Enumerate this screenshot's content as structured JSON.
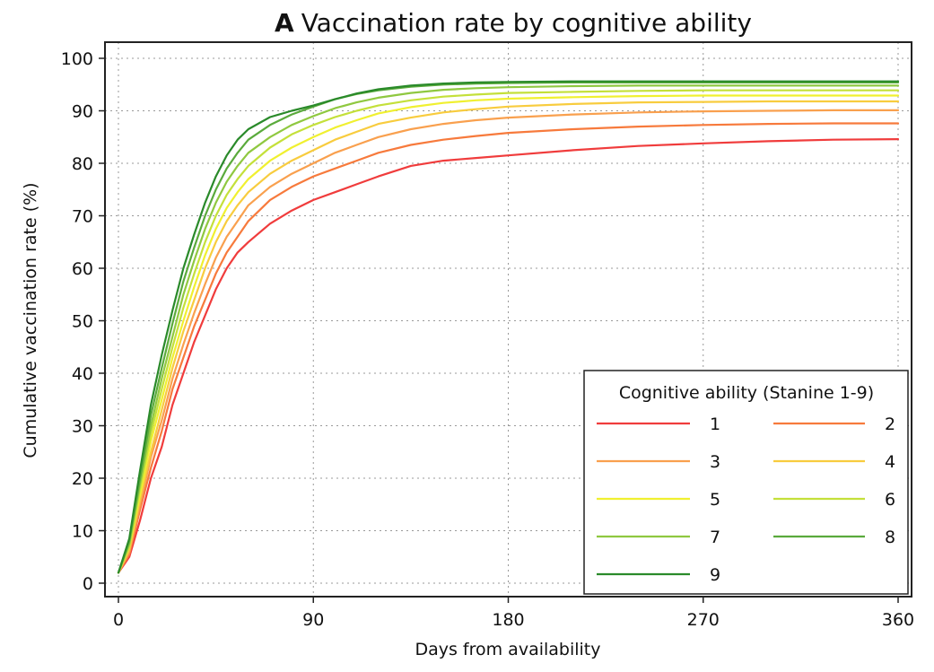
{
  "chart_data": {
    "type": "line",
    "title_prefix": "A",
    "title": "Vaccination rate by cognitive ability",
    "xlabel": "Days from availability",
    "ylabel": "Cumulative vaccination rate (%)",
    "xlim": [
      0,
      360
    ],
    "ylim": [
      0,
      100
    ],
    "xticks": [
      0,
      90,
      180,
      270,
      360
    ],
    "yticks": [
      0,
      10,
      20,
      30,
      40,
      50,
      60,
      70,
      80,
      90,
      100
    ],
    "grid": true,
    "legend": {
      "title": "Cognitive ability (Stanine 1-9)",
      "position": "bottom-right",
      "columns": 2
    },
    "x": [
      0,
      5,
      10,
      15,
      20,
      25,
      30,
      35,
      40,
      45,
      50,
      55,
      60,
      70,
      80,
      90,
      100,
      110,
      120,
      135,
      150,
      165,
      180,
      210,
      240,
      270,
      300,
      330,
      360
    ],
    "series": [
      {
        "name": "1",
        "color": "#f03c3c",
        "values": [
          2,
          5,
          12,
          20,
          26,
          34,
          40,
          46,
          51,
          56,
          60,
          63,
          65,
          68.5,
          71,
          73,
          74.5,
          76,
          77.5,
          79.5,
          80.5,
          81,
          81.5,
          82.5,
          83.3,
          83.8,
          84.2,
          84.5,
          84.6
        ]
      },
      {
        "name": "2",
        "color": "#f77a3c",
        "values": [
          2,
          5.5,
          14,
          22,
          29,
          37,
          43,
          49,
          54,
          59,
          63,
          66,
          69,
          73,
          75.5,
          77.5,
          79,
          80.5,
          82,
          83.5,
          84.5,
          85.2,
          85.8,
          86.5,
          87,
          87.3,
          87.5,
          87.6,
          87.6
        ]
      },
      {
        "name": "3",
        "color": "#f9a04e",
        "values": [
          2,
          6,
          15,
          24,
          31,
          39,
          45.5,
          51.5,
          57,
          62,
          66,
          69,
          72,
          75.5,
          78,
          80,
          82,
          83.5,
          85,
          86.5,
          87.5,
          88.2,
          88.7,
          89.3,
          89.7,
          89.9,
          90,
          90.1,
          90.1
        ]
      },
      {
        "name": "4",
        "color": "#f8cc3e",
        "values": [
          2,
          6.5,
          16,
          25,
          33,
          41,
          48,
          54,
          60,
          65,
          69,
          72,
          74.5,
          78,
          80.5,
          82.5,
          84.5,
          86,
          87.5,
          88.7,
          89.7,
          90.3,
          90.8,
          91.3,
          91.6,
          91.7,
          91.8,
          91.8,
          91.8
        ]
      },
      {
        "name": "5",
        "color": "#f0f030",
        "values": [
          2,
          7,
          17,
          27,
          35,
          43,
          50,
          56.5,
          62.5,
          67.5,
          71.5,
          74.5,
          77,
          80.5,
          83,
          85,
          86.8,
          88.2,
          89.5,
          90.7,
          91.5,
          92,
          92.3,
          92.6,
          92.8,
          92.9,
          92.9,
          92.9,
          92.9
        ]
      },
      {
        "name": "6",
        "color": "#c4e03a",
        "values": [
          2,
          7,
          18,
          28.5,
          37,
          45,
          52.5,
          59,
          65,
          70,
          74,
          77,
          79.5,
          83,
          85.5,
          87.3,
          88.8,
          90,
          91,
          92,
          92.7,
          93.1,
          93.4,
          93.6,
          93.8,
          93.9,
          93.9,
          93.9,
          93.9
        ]
      },
      {
        "name": "7",
        "color": "#8fc840",
        "values": [
          2,
          7.5,
          19,
          30,
          39,
          47,
          55,
          61.5,
          67.5,
          72.5,
          76.5,
          79.5,
          82,
          85,
          87.3,
          89,
          90.5,
          91.6,
          92.5,
          93.4,
          94,
          94.3,
          94.5,
          94.7,
          94.8,
          94.8,
          94.8,
          94.8,
          94.8
        ]
      },
      {
        "name": "8",
        "color": "#5aaa3c",
        "values": [
          2,
          8,
          20,
          32,
          41,
          49.5,
          57.5,
          64,
          70,
          75,
          79,
          82,
          84.5,
          87.3,
          89.3,
          90.8,
          92.2,
          93.2,
          93.9,
          94.6,
          95,
          95.2,
          95.3,
          95.4,
          95.4,
          95.4,
          95.4,
          95.4,
          95.4
        ]
      },
      {
        "name": "9",
        "color": "#2a8a2a",
        "values": [
          2,
          8.5,
          21.5,
          34,
          43.5,
          52,
          60,
          66.5,
          72.5,
          77.5,
          81.5,
          84.5,
          86.5,
          88.8,
          90,
          91,
          92.2,
          93.3,
          94.1,
          94.8,
          95.2,
          95.4,
          95.5,
          95.6,
          95.6,
          95.6,
          95.6,
          95.6,
          95.6
        ]
      }
    ]
  }
}
